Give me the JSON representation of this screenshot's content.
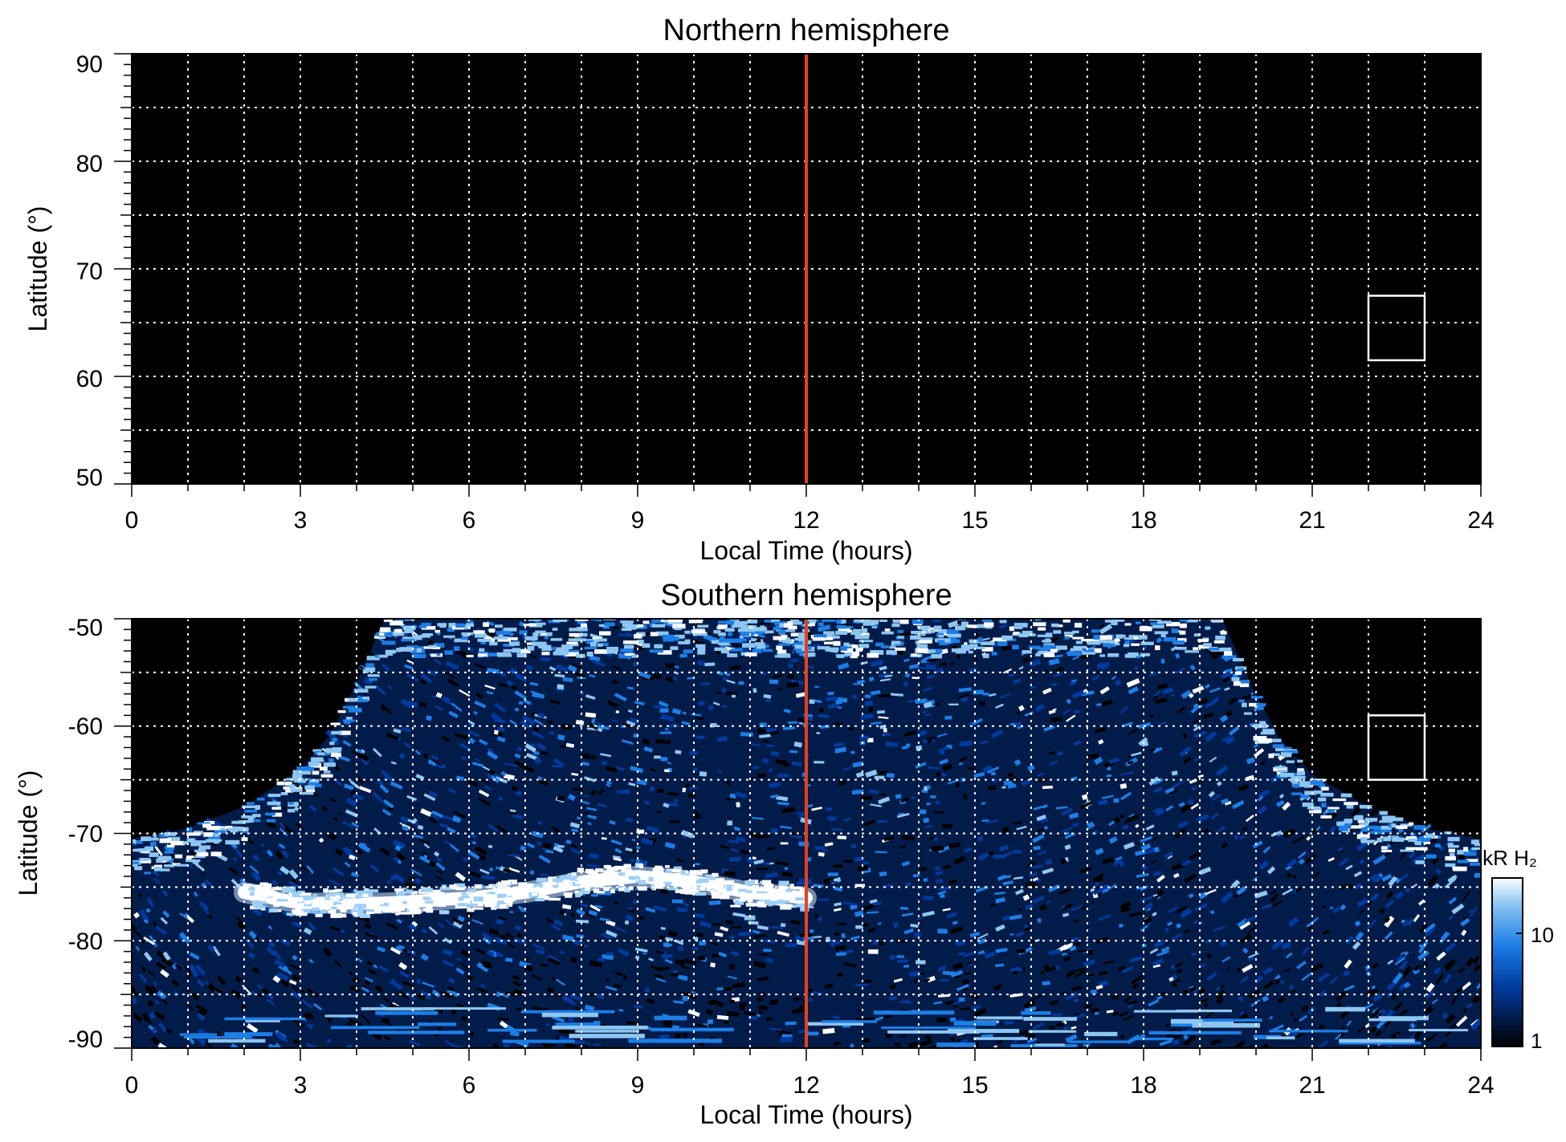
{
  "chart_data": [
    {
      "type": "heatmap",
      "title": "Northern hemisphere",
      "xlabel": "Local Time (hours)",
      "ylabel": "Latitude (°)",
      "xlim": [
        0,
        24
      ],
      "ylim": [
        50,
        90
      ],
      "xticks": [
        "0",
        "3",
        "6",
        "9",
        "12",
        "15",
        "18",
        "21",
        "24"
      ],
      "yticks": [
        "90",
        "80",
        "70",
        "60",
        "50"
      ],
      "grid": true,
      "background": "#000000",
      "noon_line": {
        "x": 12,
        "color": "#e8401c"
      },
      "box": {
        "x": [
          22,
          23
        ],
        "y": [
          61.5,
          67.5
        ],
        "color": "#ffffff"
      },
      "emission": "none"
    },
    {
      "type": "heatmap",
      "title": "Southern hemisphere",
      "xlabel": "Local Time (hours)",
      "ylabel": "Latitude (°)",
      "xlim": [
        0,
        24
      ],
      "ylim": [
        -90,
        -50
      ],
      "xticks": [
        "0",
        "3",
        "6",
        "9",
        "12",
        "15",
        "18",
        "21",
        "24"
      ],
      "yticks": [
        "-50",
        "-60",
        "-70",
        "-80",
        "-90"
      ],
      "grid": true,
      "background": "#000000",
      "noon_line": {
        "x": 12,
        "color": "#e8401c"
      },
      "box": {
        "x": [
          22,
          23
        ],
        "y": [
          -65,
          -59
        ],
        "color": "#ffffff"
      },
      "coverage_edge": [
        [
          0,
          -70.5
        ],
        [
          1,
          -69.5
        ],
        [
          2,
          -67.5
        ],
        [
          3,
          -64
        ],
        [
          3.5,
          -61
        ],
        [
          4,
          -56
        ],
        [
          4.5,
          -50
        ],
        [
          19.4,
          -50
        ],
        [
          19.9,
          -56
        ],
        [
          20.4,
          -61
        ],
        [
          21,
          -64.5
        ],
        [
          22,
          -67.5
        ],
        [
          23,
          -69.5
        ],
        [
          24,
          -70.5
        ]
      ],
      "auroral_oval": [
        [
          2,
          -75.5
        ],
        [
          3,
          -76.5
        ],
        [
          4.5,
          -76.5
        ],
        [
          6,
          -76
        ],
        [
          7,
          -75.5
        ],
        [
          8,
          -74.5
        ],
        [
          9,
          -74
        ],
        [
          10,
          -74.5
        ],
        [
          11,
          -75.5
        ],
        [
          12,
          -76
        ]
      ],
      "colorbar": {
        "label": "kR H₂",
        "ticks": [
          "10",
          "1"
        ],
        "colors": [
          "#000000",
          "#003a9e",
          "#1c7ee6",
          "#8ec6f2",
          "#ffffff"
        ]
      }
    }
  ]
}
